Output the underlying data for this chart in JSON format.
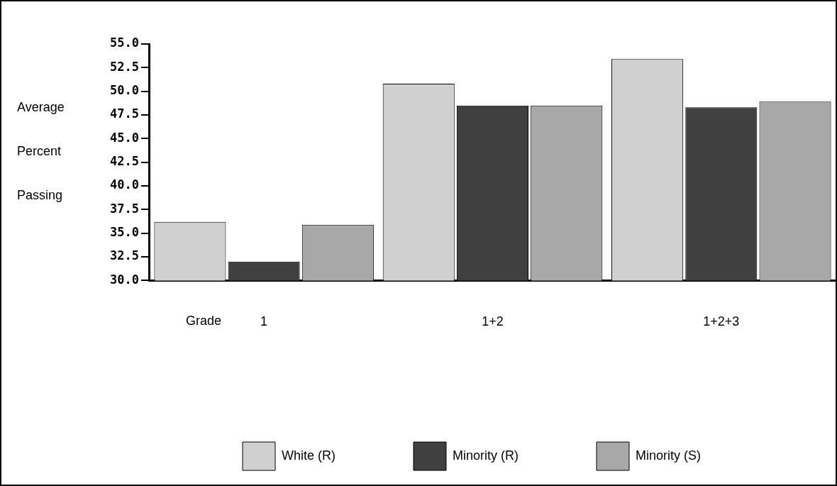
{
  "chart_data": {
    "type": "bar",
    "xlabel": "Grade",
    "ylabel": "Average Percent Passing",
    "categories": [
      "1",
      "1+2",
      "1+2+3"
    ],
    "series": [
      {
        "name": "White (R)",
        "color": "#d0d0d0",
        "values": [
          36.2,
          50.8,
          53.4
        ]
      },
      {
        "name": "Minority (R)",
        "color": "#404040",
        "values": [
          32.0,
          48.5,
          48.3
        ]
      },
      {
        "name": "Minority (S)",
        "color": "#a8a8a8",
        "values": [
          35.9,
          48.5,
          48.9
        ]
      }
    ],
    "ylim": [
      30,
      55
    ],
    "yticks": [
      {
        "value": 30,
        "label": "30.0"
      },
      {
        "value": 32.5,
        "label": "32.5"
      },
      {
        "value": 35,
        "label": "35.0"
      },
      {
        "value": 37.5,
        "label": "37.5"
      },
      {
        "value": 40,
        "label": "40.0"
      },
      {
        "value": 42.5,
        "label": "42.5"
      },
      {
        "value": 45,
        "label": "45.0"
      },
      {
        "value": 47.5,
        "label": "47.5"
      },
      {
        "value": 50,
        "label": "50.0"
      },
      {
        "value": 52.5,
        "label": "52.5"
      },
      {
        "value": 55,
        "label": "55.0"
      }
    ],
    "grid": false,
    "legend": "bottom"
  }
}
